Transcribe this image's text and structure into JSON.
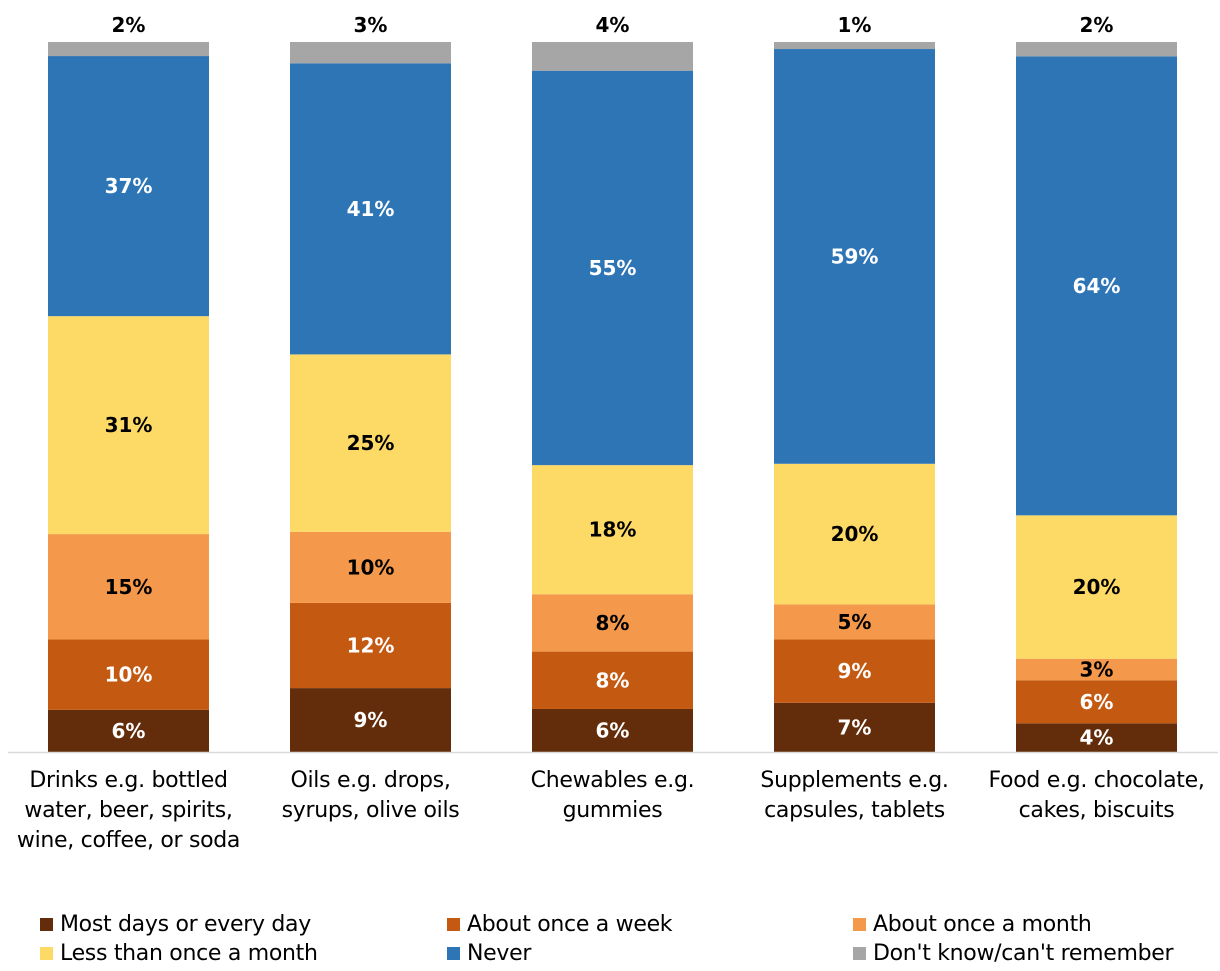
{
  "chart_data": {
    "type": "stacked-bar",
    "categories": [
      [
        "Drinks e.g. bottled",
        "water, beer, spirits,",
        "wine, coffee, or soda"
      ],
      [
        "Oils e.g. drops,",
        "syrups, olive oils"
      ],
      [
        "Chewables e.g.",
        "gummies"
      ],
      [
        "Supplements e.g.",
        "capsules, tablets"
      ],
      [
        "Food e.g. chocolate,",
        "cakes, biscuits"
      ]
    ],
    "series": [
      {
        "name": "Most days or every day",
        "color": "#632C0A",
        "label_color": "#FFFFFF",
        "values": [
          6,
          9,
          6,
          7,
          4
        ]
      },
      {
        "name": "About once a week",
        "color": "#C45911",
        "label_color": "#FFFFFF",
        "values": [
          10,
          12,
          8,
          9,
          6
        ]
      },
      {
        "name": "About once a month",
        "color": "#F4994C",
        "label_color": "#000000",
        "values": [
          15,
          10,
          8,
          5,
          3
        ]
      },
      {
        "name": "Less than once a month",
        "color": "#FDD966",
        "label_color": "#000000",
        "values": [
          31,
          25,
          18,
          20,
          20
        ]
      },
      {
        "name": "Never",
        "color": "#2E75B6",
        "label_color": "#FFFFFF",
        "values": [
          37,
          41,
          55,
          59,
          64
        ]
      },
      {
        "name": "Don't know/can't remember",
        "color": "#A6A6A6",
        "label_color": "#000000",
        "values": [
          2,
          3,
          4,
          1,
          2
        ]
      }
    ],
    "value_suffix": "%",
    "legend_position": "bottom",
    "grid": false
  }
}
